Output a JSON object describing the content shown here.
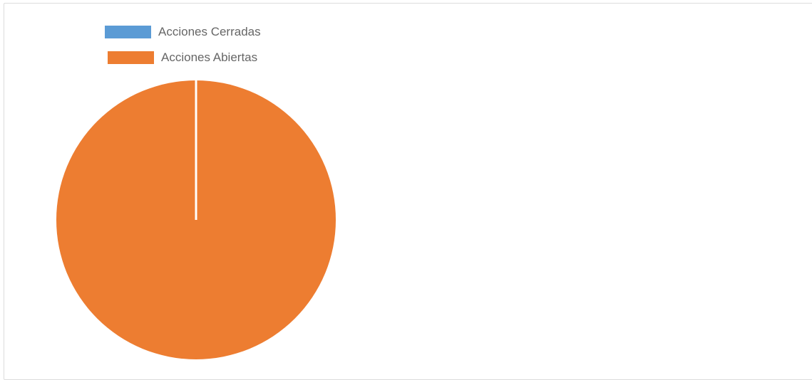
{
  "chart_data": {
    "type": "pie",
    "legend_position": "top-left",
    "series": [
      {
        "name": "Acciones Cerradas",
        "value": 0,
        "color": "#5b9bd5"
      },
      {
        "name": "Acciones Abiertas",
        "value": 100,
        "color": "#ed7d31"
      }
    ]
  }
}
